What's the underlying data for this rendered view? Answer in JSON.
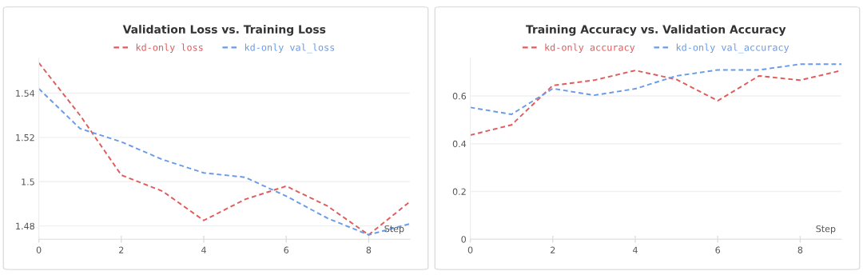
{
  "chart_data": [
    {
      "type": "line",
      "title": "Validation Loss vs. Training Loss",
      "xlabel": "Step",
      "x": [
        0,
        1,
        2,
        3,
        4,
        5,
        6,
        7,
        8,
        9
      ],
      "series": [
        {
          "name": "kd-only loss",
          "color": "#e05c5c",
          "values": [
            1.5537,
            1.53,
            1.503,
            1.4957,
            1.4825,
            1.492,
            1.498,
            1.489,
            1.476,
            1.491
          ]
        },
        {
          "name": "kd-only val_loss",
          "color": "#6a9be8",
          "values": [
            1.542,
            1.524,
            1.518,
            1.51,
            1.504,
            1.502,
            1.4935,
            1.4835,
            1.476,
            1.481
          ]
        }
      ],
      "xlim": [
        0,
        9
      ],
      "xticks": [
        0,
        2,
        4,
        6,
        8
      ],
      "ylim": [
        1.474,
        1.556
      ],
      "yticks": [
        1.48,
        1.5,
        1.52,
        1.54
      ],
      "grid": "y",
      "legend": "top",
      "line_style": "dashed"
    },
    {
      "type": "line",
      "title": "Training Accuracy vs. Validation Accuracy",
      "xlabel": "Step",
      "x": [
        0,
        1,
        2,
        3,
        4,
        5,
        6,
        7,
        8,
        9
      ],
      "series": [
        {
          "name": "kd-only accuracy",
          "color": "#e05c5c",
          "values": [
            0.436,
            0.479,
            0.644,
            0.666,
            0.707,
            0.669,
            0.58,
            0.684,
            0.666,
            0.707
          ]
        },
        {
          "name": "kd-only val_accuracy",
          "color": "#6a9be8",
          "values": [
            0.552,
            0.523,
            0.631,
            0.603,
            0.63,
            0.684,
            0.709,
            0.709,
            0.733,
            0.733
          ]
        }
      ],
      "xlim": [
        0,
        9
      ],
      "xticks": [
        0,
        2,
        4,
        6,
        8
      ],
      "ylim": [
        0,
        0.76
      ],
      "yticks": [
        0,
        0.2,
        0.4,
        0.6
      ],
      "grid": "y",
      "legend": "top",
      "line_style": "dashed"
    }
  ]
}
